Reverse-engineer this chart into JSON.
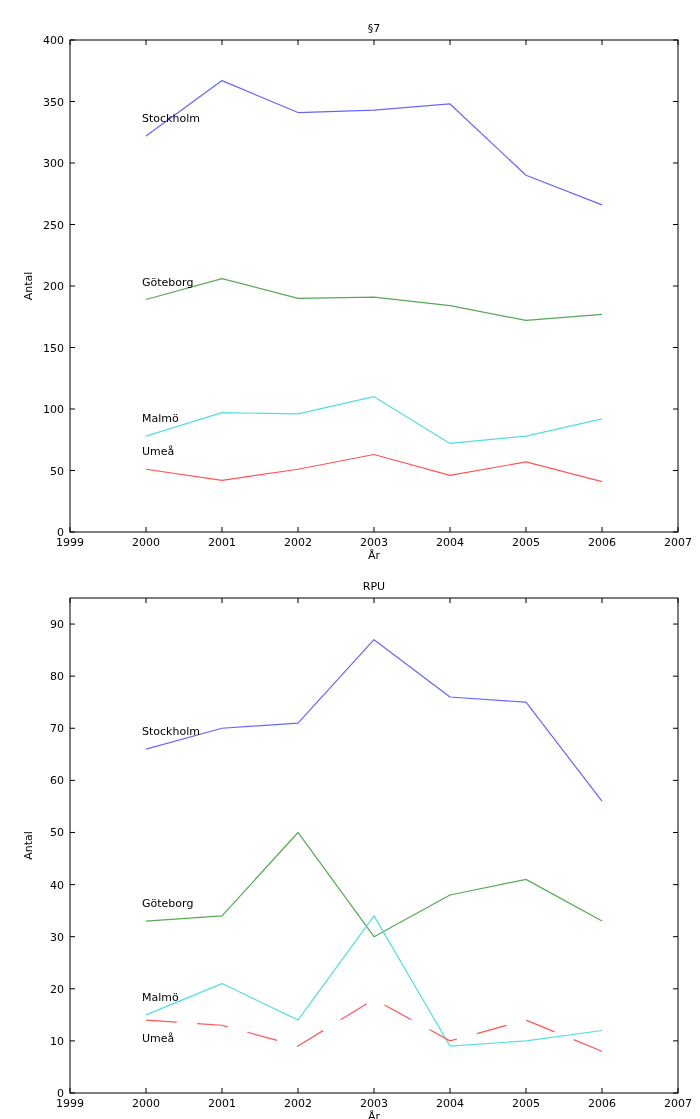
{
  "chart_data": [
    {
      "type": "line",
      "title": "§7",
      "xlabel": "År",
      "ylabel": "Antal",
      "x": [
        2000,
        2001,
        2002,
        2003,
        2004,
        2005,
        2006
      ],
      "xlim": [
        1999,
        2007
      ],
      "xticks": [
        1999,
        2000,
        2001,
        2002,
        2003,
        2004,
        2005,
        2006,
        2007
      ],
      "ylim": [
        0,
        400
      ],
      "yticks": [
        0,
        50,
        100,
        150,
        200,
        250,
        300,
        350,
        400
      ],
      "grid": false,
      "marker": "none",
      "series": [
        {
          "name": "Stockholm",
          "color": "#6666ff",
          "values": [
            322,
            367,
            341,
            343,
            348,
            290,
            266
          ]
        },
        {
          "name": "Göteborg",
          "color": "#55aa55",
          "values": [
            189,
            206,
            190,
            191,
            184,
            172,
            177
          ]
        },
        {
          "name": "Malmö",
          "color": "#55dddd",
          "values": [
            78,
            97,
            96,
            110,
            72,
            78,
            92
          ]
        },
        {
          "name": "Umeå",
          "color": "#ff5555",
          "values": [
            51,
            42,
            51,
            63,
            46,
            57,
            41
          ]
        }
      ]
    },
    {
      "type": "line",
      "title": "RPU",
      "xlabel": "År",
      "ylabel": "Antal",
      "x": [
        2000,
        2001,
        2002,
        2003,
        2004,
        2005,
        2006
      ],
      "xlim": [
        1999,
        2007
      ],
      "xticks": [
        1999,
        2000,
        2001,
        2002,
        2003,
        2004,
        2005,
        2006,
        2007
      ],
      "ylim": [
        0,
        95
      ],
      "yticks": [
        0,
        10,
        20,
        30,
        40,
        50,
        60,
        70,
        80,
        90
      ],
      "grid": false,
      "marker": "none",
      "series": [
        {
          "name": "Stockholm",
          "color": "#6666ff",
          "values": [
            66,
            70,
            71,
            87,
            76,
            75,
            56
          ]
        },
        {
          "name": "Göteborg",
          "color": "#55aa55",
          "values": [
            33,
            34,
            50,
            30,
            38,
            41,
            33
          ]
        },
        {
          "name": "Malmö",
          "color": "#55dddd",
          "values": [
            15,
            21,
            14,
            34,
            9,
            10,
            12
          ]
        },
        {
          "name": "Umeå",
          "color": "#ff5555",
          "line_style": "dashed",
          "values": [
            14,
            13,
            9,
            18,
            10,
            14,
            8
          ]
        }
      ]
    }
  ]
}
